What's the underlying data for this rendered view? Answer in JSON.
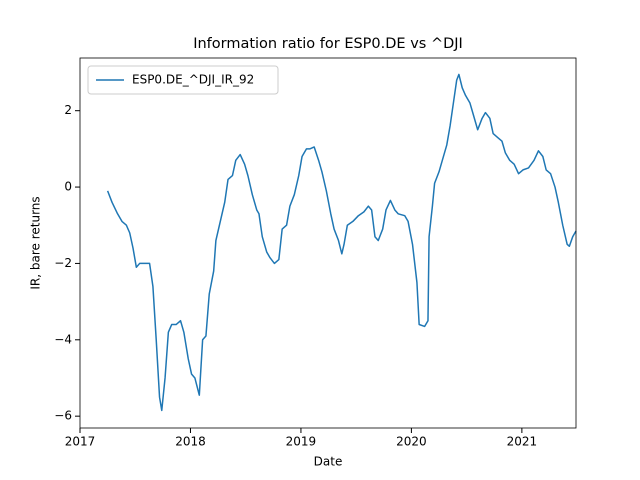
{
  "chart_data": {
    "type": "line",
    "title": "Information ratio for ESP0.DE vs ^DJI",
    "x_label": "Date",
    "y_label": "IR, bare returns",
    "x": [
      2017.25,
      2017.29,
      2017.34,
      2017.38,
      2017.42,
      2017.45,
      2017.48,
      2017.51,
      2017.54,
      2017.6,
      2017.63,
      2017.66,
      2017.69,
      2017.72,
      2017.74,
      2017.77,
      2017.8,
      2017.83,
      2017.87,
      2017.91,
      2017.94,
      2017.98,
      2018.01,
      2018.04,
      2018.08,
      2018.11,
      2018.14,
      2018.17,
      2018.21,
      2018.23,
      2018.27,
      2018.31,
      2018.34,
      2018.38,
      2018.41,
      2018.45,
      2018.49,
      2018.52,
      2018.56,
      2018.6,
      2018.62,
      2018.65,
      2018.69,
      2018.72,
      2018.76,
      2018.8,
      2018.83,
      2018.87,
      2018.9,
      2018.94,
      2018.98,
      2019.01,
      2019.05,
      2019.08,
      2019.12,
      2019.16,
      2019.19,
      2019.23,
      2019.27,
      2019.3,
      2019.34,
      2019.37,
      2019.39,
      2019.42,
      2019.47,
      2019.52,
      2019.57,
      2019.61,
      2019.64,
      2019.67,
      2019.7,
      2019.74,
      2019.77,
      2019.81,
      2019.85,
      2019.88,
      2019.94,
      2019.97,
      2020.01,
      2020.05,
      2020.07,
      2020.12,
      2020.15,
      2020.16,
      2020.19,
      2020.21,
      2020.25,
      2020.28,
      2020.32,
      2020.35,
      2020.38,
      2020.41,
      2020.43,
      2020.46,
      2020.49,
      2020.53,
      2020.56,
      2020.6,
      2020.64,
      2020.67,
      2020.71,
      2020.74,
      2020.78,
      2020.82,
      2020.85,
      2020.89,
      2020.93,
      2020.97,
      2021.01,
      2021.06,
      2021.11,
      2021.15,
      2021.19,
      2021.22,
      2021.26,
      2021.3,
      2021.33,
      2021.37,
      2021.41,
      2021.43,
      2021.46,
      2021.49
    ],
    "series": [
      {
        "name": "ESP0.DE_^DJI_IR_92",
        "color": "#1f77b4",
        "values": [
          -0.1,
          -0.4,
          -0.7,
          -0.9,
          -1.0,
          -1.2,
          -1.6,
          -2.1,
          -2.0,
          -2.0,
          -2.0,
          -2.6,
          -4.0,
          -5.5,
          -5.85,
          -5.0,
          -3.8,
          -3.6,
          -3.6,
          -3.5,
          -3.8,
          -4.5,
          -4.9,
          -5.0,
          -5.45,
          -4.0,
          -3.9,
          -2.8,
          -2.2,
          -1.4,
          -0.9,
          -0.4,
          0.2,
          0.3,
          0.7,
          0.85,
          0.6,
          0.3,
          -0.2,
          -0.6,
          -0.7,
          -1.3,
          -1.7,
          -1.85,
          -2.0,
          -1.9,
          -1.1,
          -1.0,
          -0.5,
          -0.2,
          0.3,
          0.8,
          1.0,
          1.0,
          1.05,
          0.7,
          0.4,
          -0.1,
          -0.7,
          -1.1,
          -1.4,
          -1.75,
          -1.5,
          -1.0,
          -0.9,
          -0.75,
          -0.65,
          -0.5,
          -0.6,
          -1.3,
          -1.4,
          -1.1,
          -0.6,
          -0.35,
          -0.6,
          -0.7,
          -0.75,
          -0.9,
          -1.5,
          -2.5,
          -3.6,
          -3.65,
          -3.5,
          -1.3,
          -0.5,
          0.1,
          0.4,
          0.7,
          1.1,
          1.6,
          2.2,
          2.8,
          2.95,
          2.6,
          2.4,
          2.2,
          1.9,
          1.5,
          1.8,
          1.95,
          1.8,
          1.4,
          1.3,
          1.2,
          0.9,
          0.7,
          0.6,
          0.35,
          0.45,
          0.5,
          0.7,
          0.95,
          0.8,
          0.45,
          0.35,
          0.0,
          -0.4,
          -1.0,
          -1.5,
          -1.55,
          -1.3,
          -1.15
        ]
      }
    ],
    "xlim": [
      2017,
      2021.49
    ],
    "xticks": [
      2017,
      2018,
      2019,
      2020,
      2021
    ],
    "ylim": [
      -6.31,
      3.38
    ],
    "yticks": [
      {
        "value": -6,
        "label": "−6"
      },
      {
        "value": -4,
        "label": "−4"
      },
      {
        "value": -2,
        "label": "−2"
      },
      0,
      2
    ],
    "legend": "upper left"
  }
}
